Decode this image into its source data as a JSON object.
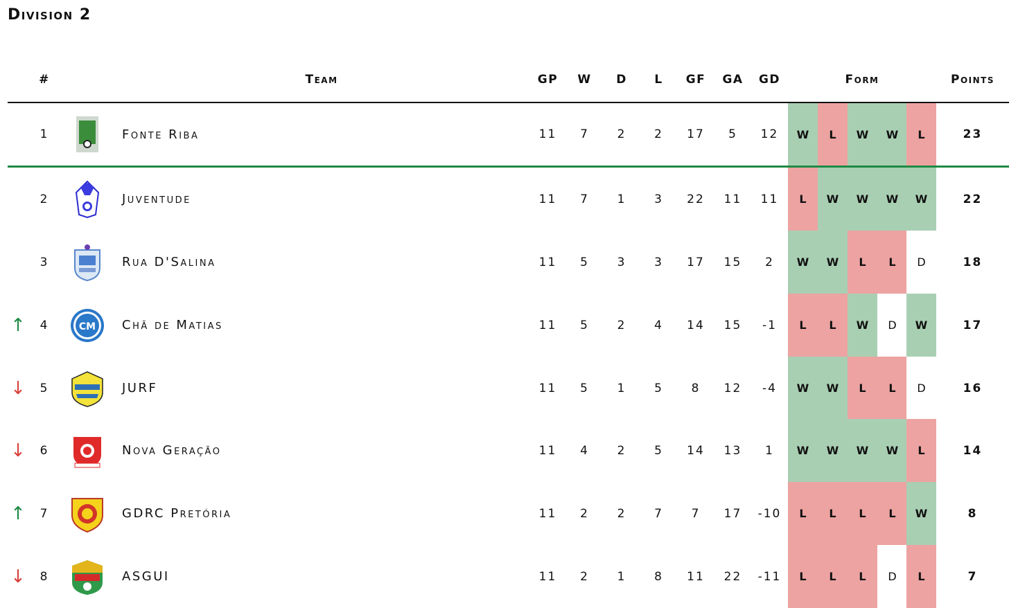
{
  "title": "Division 2",
  "headers": {
    "rank": "#",
    "team": "Team",
    "gp": "GP",
    "w": "W",
    "d": "D",
    "l": "L",
    "gf": "GF",
    "ga": "GA",
    "gd": "GD",
    "form": "Form",
    "points": "Points"
  },
  "colors": {
    "win": "#a9cfb3",
    "loss": "#eca3a1",
    "up": "#1e8a44",
    "down": "#d9413b"
  },
  "rows": [
    {
      "arrow": "",
      "rank": "1",
      "team": "Fonte Riba",
      "logo": "fonte-riba-logo",
      "gp": "11",
      "w": "7",
      "d": "2",
      "l": "2",
      "gf": "17",
      "ga": "5",
      "gd": "12",
      "form": [
        "W",
        "L",
        "W",
        "W",
        "L"
      ],
      "points": "23"
    },
    {
      "arrow": "",
      "rank": "2",
      "team": "Juventude",
      "logo": "juventude-logo",
      "gp": "11",
      "w": "7",
      "d": "1",
      "l": "3",
      "gf": "22",
      "ga": "11",
      "gd": "11",
      "form": [
        "L",
        "W",
        "W",
        "W",
        "W"
      ],
      "points": "22"
    },
    {
      "arrow": "",
      "rank": "3",
      "team": "Rua D'Salina",
      "logo": "rua-dsalina-logo",
      "gp": "11",
      "w": "5",
      "d": "3",
      "l": "3",
      "gf": "17",
      "ga": "15",
      "gd": "2",
      "form": [
        "W",
        "W",
        "L",
        "L",
        "D"
      ],
      "points": "18"
    },
    {
      "arrow": "↑",
      "rank": "4",
      "team": "Chã de Matias",
      "logo": "cha-de-matias-logo",
      "gp": "11",
      "w": "5",
      "d": "2",
      "l": "4",
      "gf": "14",
      "ga": "15",
      "gd": "-1",
      "form": [
        "L",
        "L",
        "W",
        "D",
        "W"
      ],
      "points": "17"
    },
    {
      "arrow": "↓",
      "rank": "5",
      "team": "JURF",
      "logo": "jurf-logo",
      "gp": "11",
      "w": "5",
      "d": "1",
      "l": "5",
      "gf": "8",
      "ga": "12",
      "gd": "-4",
      "form": [
        "W",
        "W",
        "L",
        "L",
        "D"
      ],
      "points": "16"
    },
    {
      "arrow": "↓",
      "rank": "6",
      "team": "Nova Geração",
      "logo": "nova-geracao-logo",
      "gp": "11",
      "w": "4",
      "d": "2",
      "l": "5",
      "gf": "14",
      "ga": "13",
      "gd": "1",
      "form": [
        "W",
        "W",
        "W",
        "W",
        "L"
      ],
      "points": "14"
    },
    {
      "arrow": "↑",
      "rank": "7",
      "team": "GDRC Pretória",
      "logo": "gdrc-pretoria-logo",
      "gp": "11",
      "w": "2",
      "d": "2",
      "l": "7",
      "gf": "7",
      "ga": "17",
      "gd": "-10",
      "form": [
        "L",
        "L",
        "L",
        "L",
        "W"
      ],
      "points": "8"
    },
    {
      "arrow": "↓",
      "rank": "8",
      "team": "ASGUI",
      "logo": "asgui-logo",
      "gp": "11",
      "w": "2",
      "d": "1",
      "l": "8",
      "gf": "11",
      "ga": "22",
      "gd": "-11",
      "form": [
        "L",
        "L",
        "L",
        "D",
        "L"
      ],
      "points": "7"
    }
  ]
}
